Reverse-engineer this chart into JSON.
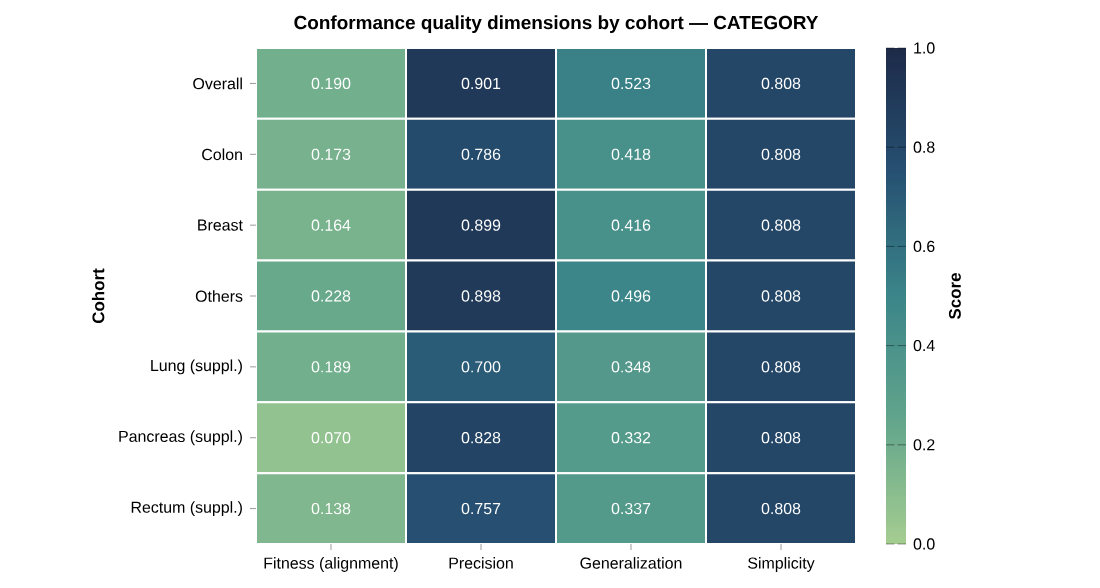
{
  "chart_data": {
    "type": "heatmap",
    "title": "Conformance quality dimensions by cohort — CATEGORY",
    "ylabel": "Cohort",
    "clabel": "Score",
    "categories": [
      "Fitness (alignment)",
      "Precision",
      "Generalization",
      "Simplicity"
    ],
    "y_categories": [
      "Overall",
      "Colon",
      "Breast",
      "Others",
      "Lung (suppl.)",
      "Pancreas (suppl.)",
      "Rectum (suppl.)"
    ],
    "cells": [
      [
        0.19,
        0.901,
        0.523,
        0.808
      ],
      [
        0.173,
        0.786,
        0.418,
        0.808
      ],
      [
        0.164,
        0.899,
        0.416,
        0.808
      ],
      [
        0.228,
        0.898,
        0.496,
        0.808
      ],
      [
        0.189,
        0.7,
        0.348,
        0.808
      ],
      [
        0.07,
        0.828,
        0.332,
        0.808
      ],
      [
        0.138,
        0.757,
        0.337,
        0.808
      ]
    ],
    "cell_labels": [
      [
        "0.190",
        "0.901",
        "0.523",
        "0.808"
      ],
      [
        "0.173",
        "0.786",
        "0.418",
        "0.808"
      ],
      [
        "0.164",
        "0.899",
        "0.416",
        "0.808"
      ],
      [
        "0.228",
        "0.898",
        "0.496",
        "0.808"
      ],
      [
        "0.189",
        "0.700",
        "0.348",
        "0.808"
      ],
      [
        "0.070",
        "0.828",
        "0.332",
        "0.808"
      ],
      [
        "0.138",
        "0.757",
        "0.337",
        "0.808"
      ]
    ],
    "clim": [
      0,
      1
    ],
    "cticks": [
      {
        "value": 0,
        "label": "0.0"
      },
      0.2,
      0.4,
      0.6,
      0.8,
      {
        "value": 1,
        "label": "1.0"
      }
    ]
  }
}
